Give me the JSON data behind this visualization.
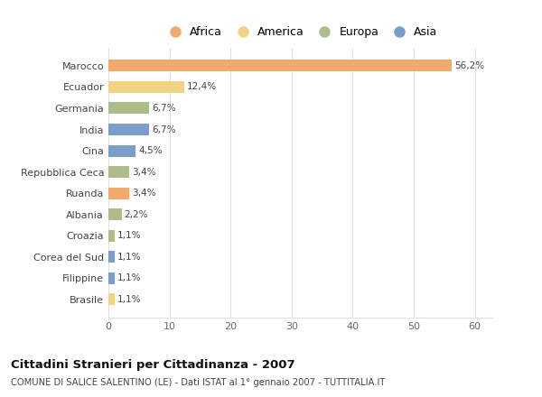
{
  "countries": [
    "Marocco",
    "Ecuador",
    "Germania",
    "India",
    "Cina",
    "Repubblica Ceca",
    "Ruanda",
    "Albania",
    "Croazia",
    "Corea del Sud",
    "Filippine",
    "Brasile"
  ],
  "values": [
    56.2,
    12.4,
    6.7,
    6.7,
    4.5,
    3.4,
    3.4,
    2.2,
    1.1,
    1.1,
    1.1,
    1.1
  ],
  "labels": [
    "56,2%",
    "12,4%",
    "6,7%",
    "6,7%",
    "4,5%",
    "3,4%",
    "3,4%",
    "2,2%",
    "1,1%",
    "1,1%",
    "1,1%",
    "1,1%"
  ],
  "bar_colors": [
    "#F2A96E",
    "#F0D482",
    "#AEBB8A",
    "#7B9DC9",
    "#7B9DC9",
    "#AEBB8A",
    "#F2A96E",
    "#AEBB8A",
    "#AEBB8A",
    "#7B9DC9",
    "#7B9DC9",
    "#F0D482"
  ],
  "title": "Cittadini Stranieri per Cittadinanza - 2007",
  "subtitle": "COMUNE DI SALICE SALENTINO (LE) - Dati ISTAT al 1° gennaio 2007 - TUTTITALIA.IT",
  "xlim": [
    0,
    63
  ],
  "xticks": [
    0,
    10,
    20,
    30,
    40,
    50,
    60
  ],
  "background_color": "#ffffff",
  "grid_color": "#e0e0e0",
  "legend_items": [
    "Africa",
    "America",
    "Europa",
    "Asia"
  ],
  "legend_colors": [
    "#F2A96E",
    "#F0D482",
    "#AEBB8A",
    "#7B9DC9"
  ]
}
